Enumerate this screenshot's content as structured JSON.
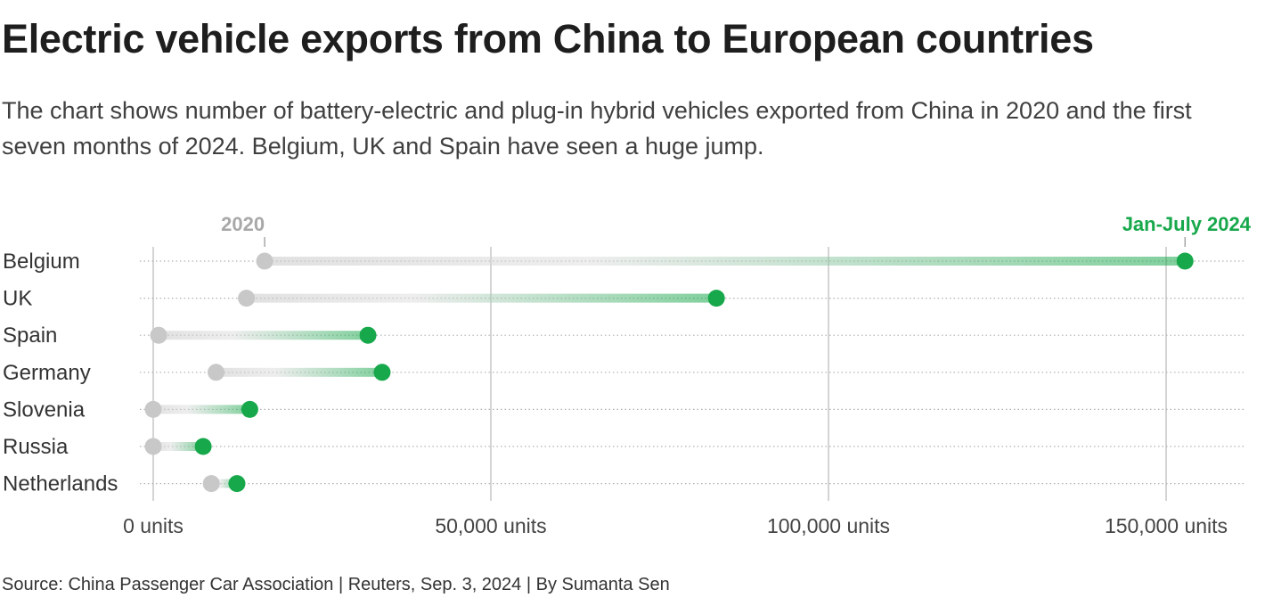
{
  "title": "Electric vehicle exports from China to European countries",
  "subtitle": "The chart shows number of battery-electric and plug-in hybrid vehicles exported from China in 2020 and the first seven months of 2024. Belgium, UK and Spain have seen a huge jump.",
  "source": "Source: China Passenger Car Association | Reuters, Sep. 3, 2024 | By Sumanta Sen",
  "colors": {
    "start": "#c8c8c8",
    "end": "#17a84b",
    "grid": "#bdbdbd",
    "row_line": "#b0b0b0"
  },
  "chart_data": {
    "type": "dumbbell",
    "title": "Electric vehicle exports from China to European countries",
    "xlabel": "",
    "ylabel": "",
    "xlim": [
      0,
      160000
    ],
    "ticks": [
      0,
      50000,
      100000,
      150000
    ],
    "tick_labels": [
      "0 units",
      "50,000 units",
      "100,000 units",
      "150,000 units"
    ],
    "grid": true,
    "series": [
      {
        "name": "2020",
        "color": "#c8c8c8"
      },
      {
        "name": "Jan-July 2024",
        "color": "#17a84b"
      }
    ],
    "categories": [
      "Belgium",
      "UK",
      "Spain",
      "Germany",
      "Slovenia",
      "Russia",
      "Netherlands"
    ],
    "values_2020": [
      16500,
      13800,
      800,
      9300,
      0,
      0,
      8600
    ],
    "values_2024": [
      152800,
      83400,
      31800,
      33900,
      14300,
      7400,
      12400
    ]
  }
}
